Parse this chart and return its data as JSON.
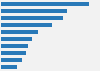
{
  "values": [
    72,
    54,
    51,
    42,
    30,
    25,
    22,
    20,
    17,
    13
  ],
  "bar_color": "#2979b8",
  "background_color": "#f2f2f2",
  "grid_color": "#ffffff",
  "xlim": [
    0,
    80
  ]
}
